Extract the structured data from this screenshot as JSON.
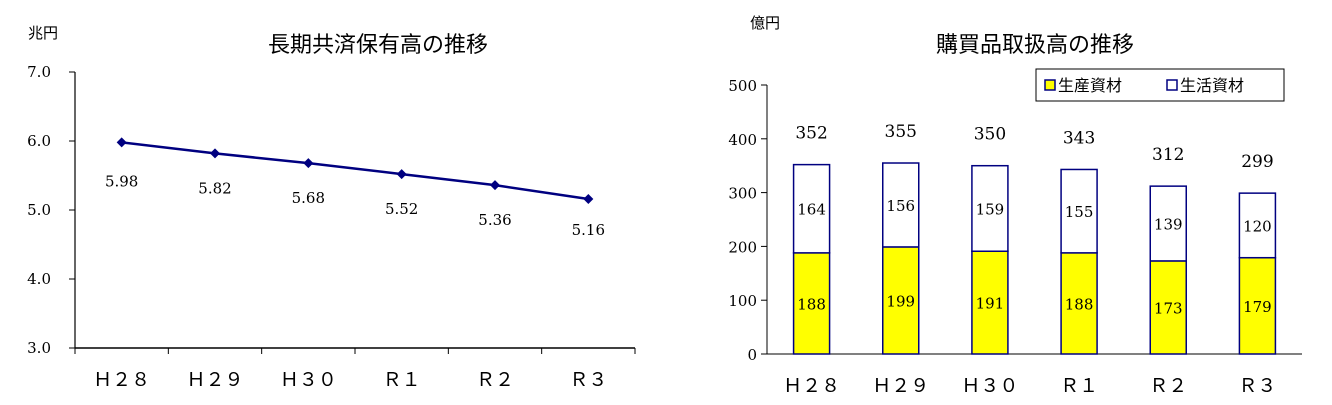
{
  "chart_data": [
    {
      "type": "line",
      "title": "長期共済保有高の推移",
      "unit_label": "兆円",
      "categories": [
        "Ｈ２８",
        "Ｈ２９",
        "Ｈ３０",
        "Ｒ１",
        "Ｒ２",
        "Ｒ３"
      ],
      "series": [
        {
          "values": [
            5.98,
            5.82,
            5.68,
            5.52,
            5.36,
            5.16
          ],
          "value_labels": [
            "5.98",
            "5.82",
            "5.68",
            "5.52",
            "5.36",
            "5.16"
          ],
          "color": "#000080"
        }
      ],
      "ylim": [
        3.0,
        7.0
      ],
      "yticks": [
        "3.0",
        "4.0",
        "5.0",
        "6.0",
        "7.0"
      ],
      "grid": false
    },
    {
      "type": "bar",
      "stacked": true,
      "title": "購買品取扱高の推移",
      "unit_label": "億円",
      "categories": [
        "Ｈ２８",
        "Ｈ２９",
        "Ｈ３０",
        "Ｒ１",
        "Ｒ２",
        "Ｒ３"
      ],
      "series": [
        {
          "name": "生産資材",
          "values": [
            188,
            199,
            191,
            188,
            173,
            179
          ],
          "color": "#ffff00"
        },
        {
          "name": "生活資材",
          "values": [
            164,
            156,
            159,
            155,
            139,
            120
          ],
          "color": "#ffffff"
        }
      ],
      "totals": [
        352,
        355,
        350,
        343,
        312,
        299
      ],
      "ylim": [
        0,
        500
      ],
      "yticks": [
        "0",
        "100",
        "200",
        "300",
        "400",
        "500"
      ],
      "legend": "top-right",
      "grid": false
    }
  ]
}
